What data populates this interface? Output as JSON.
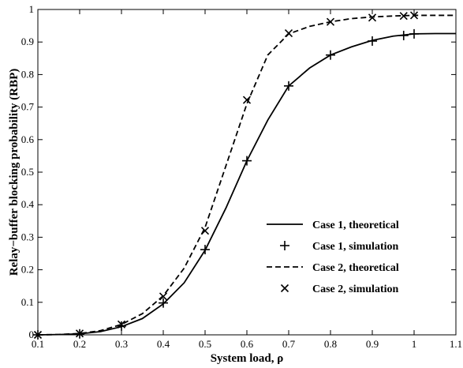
{
  "chart_data": {
    "type": "line",
    "xlabel": "System load, ρ",
    "ylabel": "Relay−buffer blocking probability (RBP)",
    "xlim": [
      0.1,
      1.1
    ],
    "ylim": [
      0,
      1
    ],
    "xticks": [
      "0.1",
      "0.2",
      "0.3",
      "0.4",
      "0.5",
      "0.6",
      "0.7",
      "0.8",
      "0.9",
      "1",
      "1.1"
    ],
    "yticks": [
      "0",
      "0.1",
      "0.2",
      "0.3",
      "0.4",
      "0.5",
      "0.6",
      "0.7",
      "0.8",
      "0.9",
      "1"
    ],
    "grid": false,
    "legend_position": "lower-right",
    "series": [
      {
        "name": "Case 1, theoretical",
        "style": "solid",
        "color": "#000000",
        "x": [
          0.1,
          0.15,
          0.2,
          0.25,
          0.3,
          0.35,
          0.4,
          0.45,
          0.5,
          0.55,
          0.6,
          0.65,
          0.7,
          0.75,
          0.8,
          0.85,
          0.9,
          0.95,
          1.0,
          1.05,
          1.1
        ],
        "y": [
          0.0,
          0.001,
          0.003,
          0.01,
          0.025,
          0.05,
          0.095,
          0.16,
          0.26,
          0.39,
          0.535,
          0.66,
          0.765,
          0.82,
          0.86,
          0.885,
          0.905,
          0.918,
          0.925,
          0.926,
          0.926
        ]
      },
      {
        "name": "Case 1, simulation",
        "style": "plus",
        "color": "#000000",
        "x": [
          0.1,
          0.2,
          0.3,
          0.4,
          0.5,
          0.6,
          0.7,
          0.8,
          0.9,
          0.975,
          1.0
        ],
        "y": [
          0.0,
          0.003,
          0.027,
          0.098,
          0.262,
          0.535,
          0.765,
          0.86,
          0.903,
          0.92,
          0.925
        ]
      },
      {
        "name": "Case 2, theoretical",
        "style": "dashed",
        "color": "#000000",
        "x": [
          0.1,
          0.15,
          0.2,
          0.25,
          0.3,
          0.35,
          0.4,
          0.45,
          0.5,
          0.55,
          0.6,
          0.65,
          0.7,
          0.75,
          0.8,
          0.85,
          0.9,
          0.95,
          1.0,
          1.05,
          1.1
        ],
        "y": [
          0.0,
          0.001,
          0.004,
          0.013,
          0.032,
          0.065,
          0.12,
          0.205,
          0.33,
          0.52,
          0.71,
          0.86,
          0.925,
          0.948,
          0.962,
          0.972,
          0.977,
          0.98,
          0.982,
          0.982,
          0.982
        ]
      },
      {
        "name": "Case 2, simulation",
        "style": "cross",
        "color": "#000000",
        "x": [
          0.1,
          0.2,
          0.3,
          0.4,
          0.5,
          0.6,
          0.7,
          0.8,
          0.9,
          0.975,
          1.0
        ],
        "y": [
          0.0,
          0.004,
          0.032,
          0.118,
          0.32,
          0.722,
          0.927,
          0.962,
          0.975,
          0.98,
          0.982
        ]
      }
    ]
  }
}
